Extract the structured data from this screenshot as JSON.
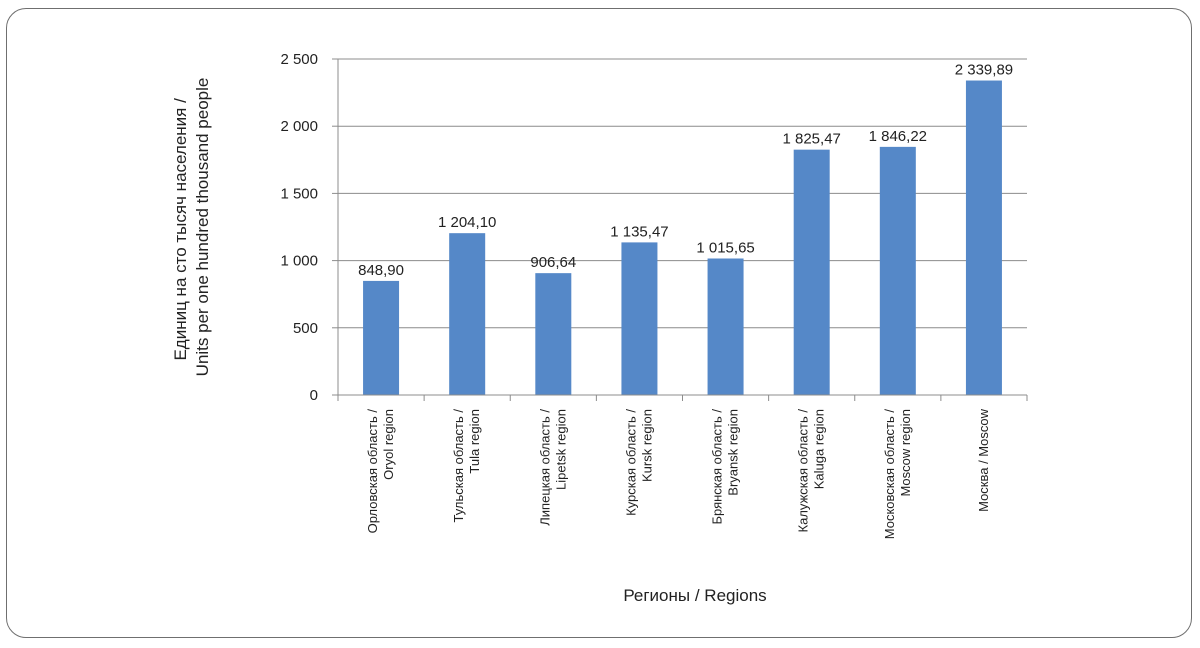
{
  "chart_data": {
    "type": "bar",
    "title": "",
    "xlabel": "Регионы / Regions",
    "ylabel": [
      "Единиц на сто тысяч населения /",
      "Units per one hundred thousand people"
    ],
    "ylim": [
      0,
      2500
    ],
    "yticks": [
      0,
      500,
      1000,
      1500,
      2000,
      2500
    ],
    "ytick_labels": [
      "0",
      "500",
      "1 000",
      "1 500",
      "2 000",
      "2 500"
    ],
    "grid": true,
    "bar_color": "#5588C8",
    "categories": [
      [
        "Орловская область /",
        "Oryol region"
      ],
      [
        "Тульская область /",
        "Tula region"
      ],
      [
        "Липецкая область /",
        "Lipetsk region"
      ],
      [
        "Курская область /",
        "Kursk region"
      ],
      [
        "Брянская область /",
        "Bryansk region"
      ],
      [
        "Калужская область /",
        "Kaluga region"
      ],
      [
        "Московская область /",
        "Moscow region"
      ],
      [
        "Москва / Moscow"
      ]
    ],
    "values": [
      848.9,
      1204.1,
      906.64,
      1135.47,
      1015.65,
      1825.47,
      1846.22,
      2339.89
    ],
    "value_labels": [
      "848,90",
      "1 204,10",
      "906,64",
      "1 135,47",
      "1 015,65",
      "1 825,47",
      "1 846,22",
      "2 339,89"
    ]
  }
}
